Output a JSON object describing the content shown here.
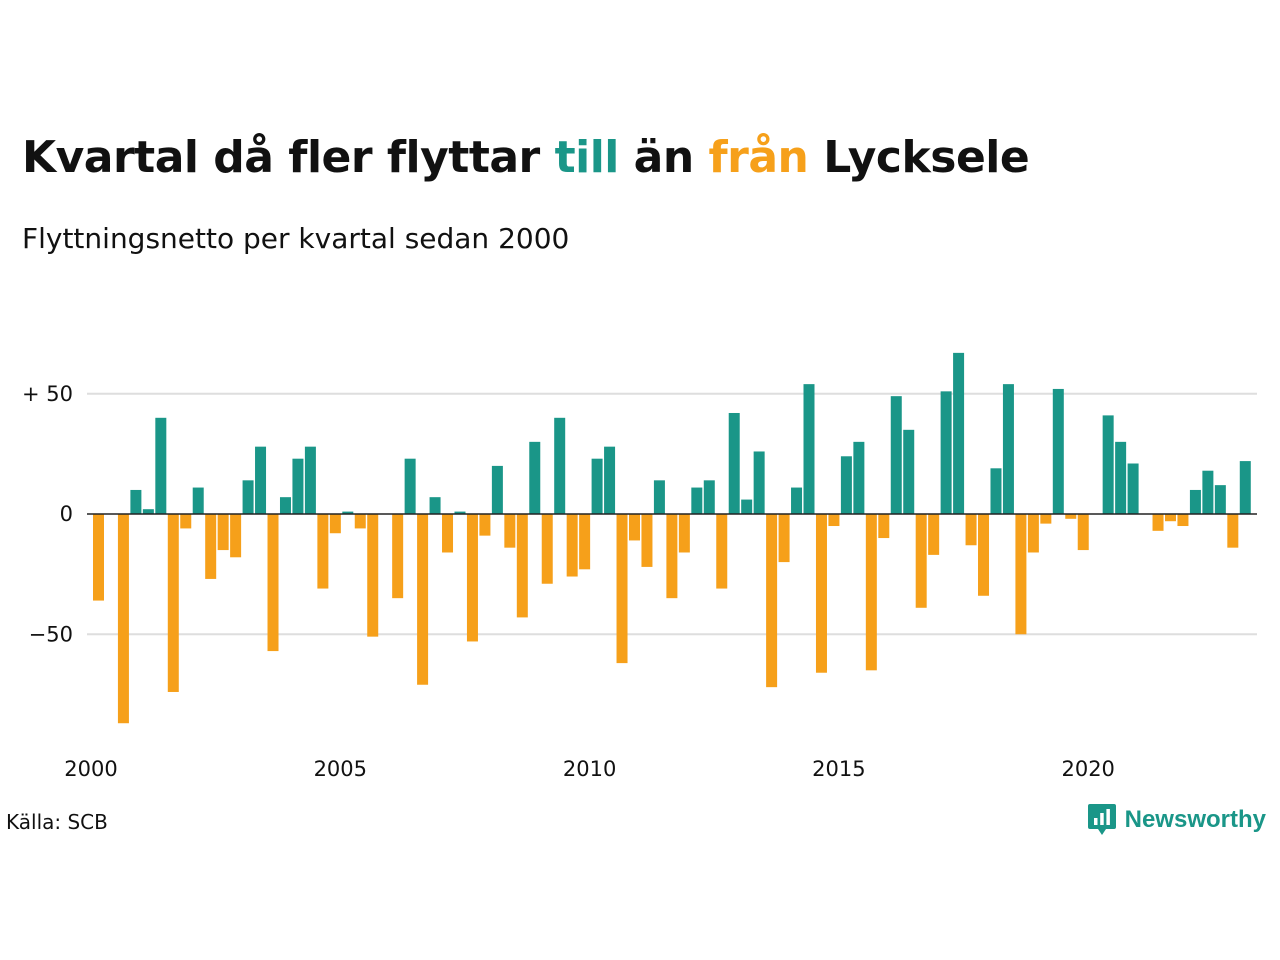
{
  "title": {
    "part1": "Kvartal då fler flyttar ",
    "till": "till",
    "part2": " än ",
    "fran": "från",
    "part3": " Lycksele"
  },
  "subtitle": "Flyttningsnetto per kvartal sedan 2000",
  "source": "Källa: SCB",
  "logo": {
    "text": "Newsworthy",
    "icon": "chart-bubble-icon"
  },
  "colors": {
    "positive": "#1a9688",
    "negative": "#f6a01a",
    "grid": "#dedede",
    "text": "#111111"
  },
  "chart_data": {
    "type": "bar",
    "ylim": [
      -90,
      70
    ],
    "y_ticks": [
      50,
      0,
      -50
    ],
    "y_tick_labels": [
      "+ 50",
      "0",
      "−50"
    ],
    "x_tick_labels": [
      "2000",
      "2005",
      "2010",
      "2015",
      "2020"
    ],
    "x_tick_years": [
      2000,
      2005,
      2010,
      2015,
      2020
    ],
    "x_start": 2000,
    "values": [
      -36,
      0,
      -87,
      10,
      2,
      40,
      -74,
      -6,
      11,
      -27,
      -15,
      -18,
      14,
      28,
      -57,
      7,
      23,
      28,
      -31,
      -8,
      1,
      -6,
      -51,
      0,
      -35,
      23,
      -71,
      7,
      -16,
      1,
      -53,
      -9,
      20,
      -14,
      -43,
      30,
      -29,
      40,
      -26,
      -23,
      23,
      28,
      -62,
      -11,
      -22,
      14,
      -35,
      -16,
      11,
      14,
      -31,
      42,
      6,
      26,
      -72,
      -20,
      11,
      54,
      -66,
      -5,
      24,
      30,
      -65,
      -10,
      49,
      35,
      -39,
      -17,
      51,
      67,
      -13,
      -34,
      19,
      54,
      -50,
      -16,
      -4,
      52,
      -2,
      -15,
      0,
      41,
      30,
      21,
      0,
      -7,
      -3,
      -5,
      10,
      18,
      12,
      -14,
      22
    ]
  }
}
